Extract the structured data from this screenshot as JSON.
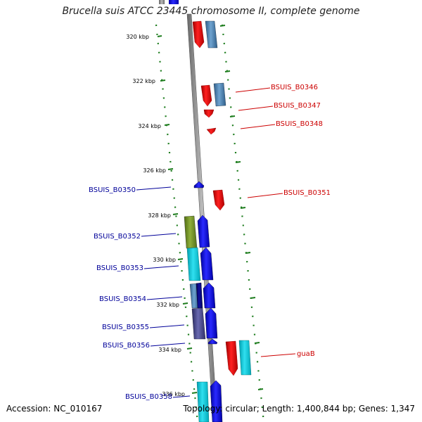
{
  "title": "Brucella suis ATCC 23445 chromosome II, complete genome",
  "footer": {
    "accession": "Accession: NC_010167",
    "summary": "Topology: circular; Length: 1,400,844 bp; Genes: 1,347"
  },
  "colors": {
    "forward_label": "#cc0000",
    "reverse_label": "#000099",
    "backbone": "#888888",
    "ruler": "#1e7d1e"
  },
  "ruler_ticks": [
    "320 kbp",
    "322 kbp",
    "324 kbp",
    "326 kbp",
    "328 kbp",
    "330 kbp",
    "332 kbp",
    "334 kbp",
    "336 kbp"
  ],
  "genes": [
    {
      "label": "BSUIS_B0346",
      "strand": "forward"
    },
    {
      "label": "BSUIS_B0347",
      "strand": "forward"
    },
    {
      "label": "BSUIS_B0348",
      "strand": "forward"
    },
    {
      "label": "BSUIS_B0350",
      "strand": "reverse"
    },
    {
      "label": "BSUIS_B0351",
      "strand": "forward"
    },
    {
      "label": "BSUIS_B0352",
      "strand": "reverse"
    },
    {
      "label": "BSUIS_B0353",
      "strand": "reverse"
    },
    {
      "label": "BSUIS_B0354",
      "strand": "reverse"
    },
    {
      "label": "BSUIS_B0355",
      "strand": "reverse"
    },
    {
      "label": "BSUIS_B0356",
      "strand": "reverse"
    },
    {
      "label": "guaB",
      "strand": "forward"
    },
    {
      "label": "BSUIS_B0358",
      "strand": "reverse"
    }
  ]
}
